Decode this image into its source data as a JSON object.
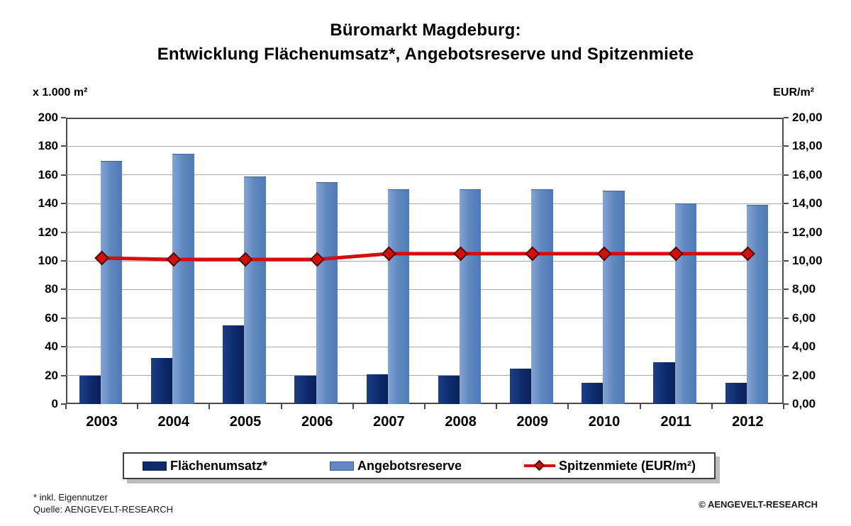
{
  "title": {
    "line1": "Büromarkt Magdeburg:",
    "line2": "Entwicklung Flächenumsatz*, Angebotsreserve und Spitzenmiete"
  },
  "axes": {
    "left_unit": "x 1.000 m²",
    "right_unit": "EUR/m²",
    "left_ticks": [
      "200",
      "180",
      "160",
      "140",
      "120",
      "100",
      "80",
      "60",
      "40",
      "20",
      "0"
    ],
    "right_ticks": [
      "20,00",
      "18,00",
      "16,00",
      "14,00",
      "12,00",
      "10,00",
      "8,00",
      "6,00",
      "4,00",
      "2,00",
      "0,00"
    ]
  },
  "chart_data": {
    "type": "bar",
    "subtype": "grouped bars with overlaid line",
    "title": "Büromarkt Magdeburg: Entwicklung Flächenumsatz*, Angebotsreserve und Spitzenmiete",
    "categories": [
      "2003",
      "2004",
      "2005",
      "2006",
      "2007",
      "2008",
      "2009",
      "2010",
      "2011",
      "2012"
    ],
    "series": [
      {
        "name": "Flächenumsatz*",
        "type": "bar",
        "axis": "left",
        "color": "#0e2b6e",
        "values": [
          20,
          32,
          55,
          20,
          21,
          20,
          25,
          15,
          29,
          15
        ]
      },
      {
        "name": "Angebotsreserve",
        "type": "bar",
        "axis": "left",
        "color": "#6189c0",
        "values": [
          170,
          175,
          159,
          155,
          150,
          150,
          150,
          149,
          140,
          139
        ]
      },
      {
        "name": "Spitzenmiete (EUR/m²)",
        "type": "line",
        "axis": "right",
        "color": "#d60d0d",
        "marker": "diamond",
        "values": [
          10.2,
          10.1,
          10.1,
          10.1,
          10.5,
          10.5,
          10.5,
          10.5,
          10.5,
          10.5
        ]
      }
    ],
    "left_axis": {
      "label": "x 1.000 m²",
      "min": 0,
      "max": 200,
      "step": 20
    },
    "right_axis": {
      "label": "EUR/m²",
      "min": 0,
      "max": 20,
      "step": 2
    },
    "grid": true,
    "legend_position": "bottom"
  },
  "legend": {
    "items": [
      {
        "label": "Flächenumsatz*",
        "swatch": "bar-dark"
      },
      {
        "label": "Angebotsreserve",
        "swatch": "bar-light"
      },
      {
        "label": "Spitzenmiete (EUR/m²)",
        "swatch": "line"
      }
    ]
  },
  "footnotes": {
    "line1": "* inkl. Eigennutzer",
    "line2": "Quelle: AENGEVELT-RESEARCH"
  },
  "copyright": "© AENGEVELT-RESEARCH",
  "colors": {
    "bar_dark": "#0e2b6e",
    "bar_light": "#6189c0",
    "line_red": "#d60d0d",
    "grid": "#a8a8a8",
    "axis": "#4a4a4a"
  }
}
